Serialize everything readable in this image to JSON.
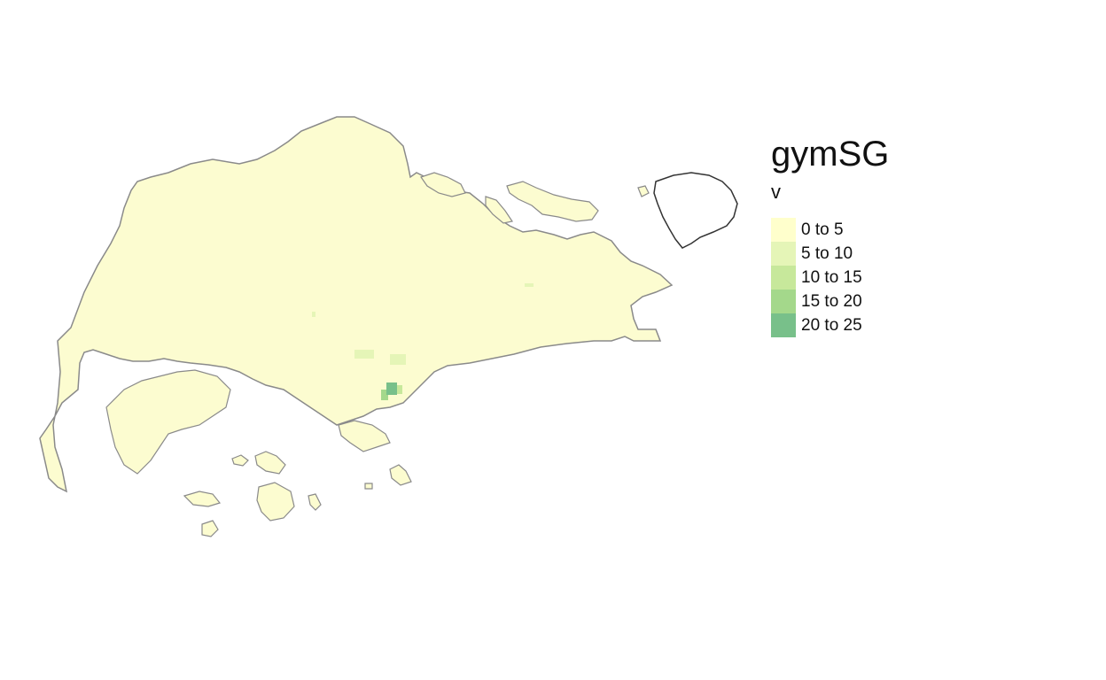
{
  "map": {
    "title": "gymSG",
    "variable": "v",
    "legend": [
      {
        "label": "0 to 5",
        "color": "#ffffcc"
      },
      {
        "label": "5 to 10",
        "color": "#e5f5b7"
      },
      {
        "label": "10 to 15",
        "color": "#c7e89b"
      },
      {
        "label": "15 to 20",
        "color": "#a4d88b"
      },
      {
        "label": "20 to 25",
        "color": "#78c08a"
      }
    ],
    "colors": {
      "land": "#fcfcd0",
      "coast": "#8a8a8a",
      "outline_only_island": "#333333"
    }
  }
}
